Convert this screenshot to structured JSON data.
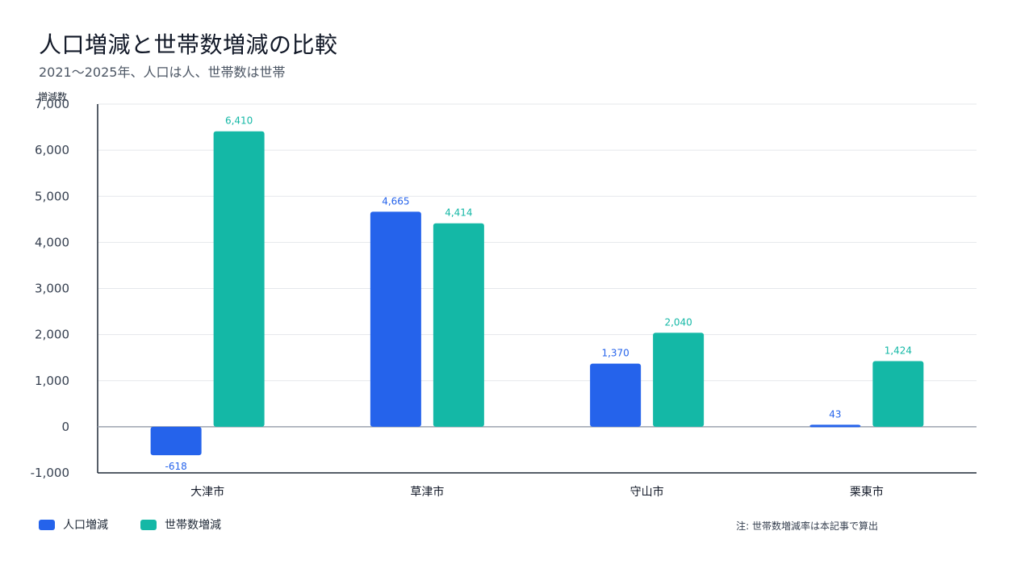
{
  "header": {
    "title": "人口増減と世帯数増減の比較",
    "subtitle": "2021～2025年、人口は人、世帯数は世帯"
  },
  "note": "注: 世帯数増減率は本記事で算出",
  "colors": {
    "population": "#2563eb",
    "households": "#14b8a6"
  },
  "chart_data": {
    "type": "bar",
    "title": "人口増減と世帯数増減の比較",
    "subtitle": "2021～2025年、人口は人、世帯数は世帯",
    "ylabel": "増減数",
    "xlabel": "",
    "ylim": [
      -1000,
      7000
    ],
    "yticks": [
      "-1,000",
      "0",
      "1,000",
      "2,000",
      "3,000",
      "4,000",
      "5,000",
      "6,000",
      "7,000"
    ],
    "grid": true,
    "legend_position": "bottom-left",
    "categories": [
      "大津市",
      "草津市",
      "守山市",
      "栗東市"
    ],
    "series": [
      {
        "name": "人口増減",
        "values": [
          -618,
          4665,
          1370,
          43
        ],
        "labels": [
          "-618",
          "4,665",
          "1,370",
          "43"
        ]
      },
      {
        "name": "世帯数増減",
        "values": [
          6410,
          4414,
          2040,
          1424
        ],
        "labels": [
          "6,410",
          "4,414",
          "2,040",
          "1,424"
        ]
      }
    ]
  }
}
